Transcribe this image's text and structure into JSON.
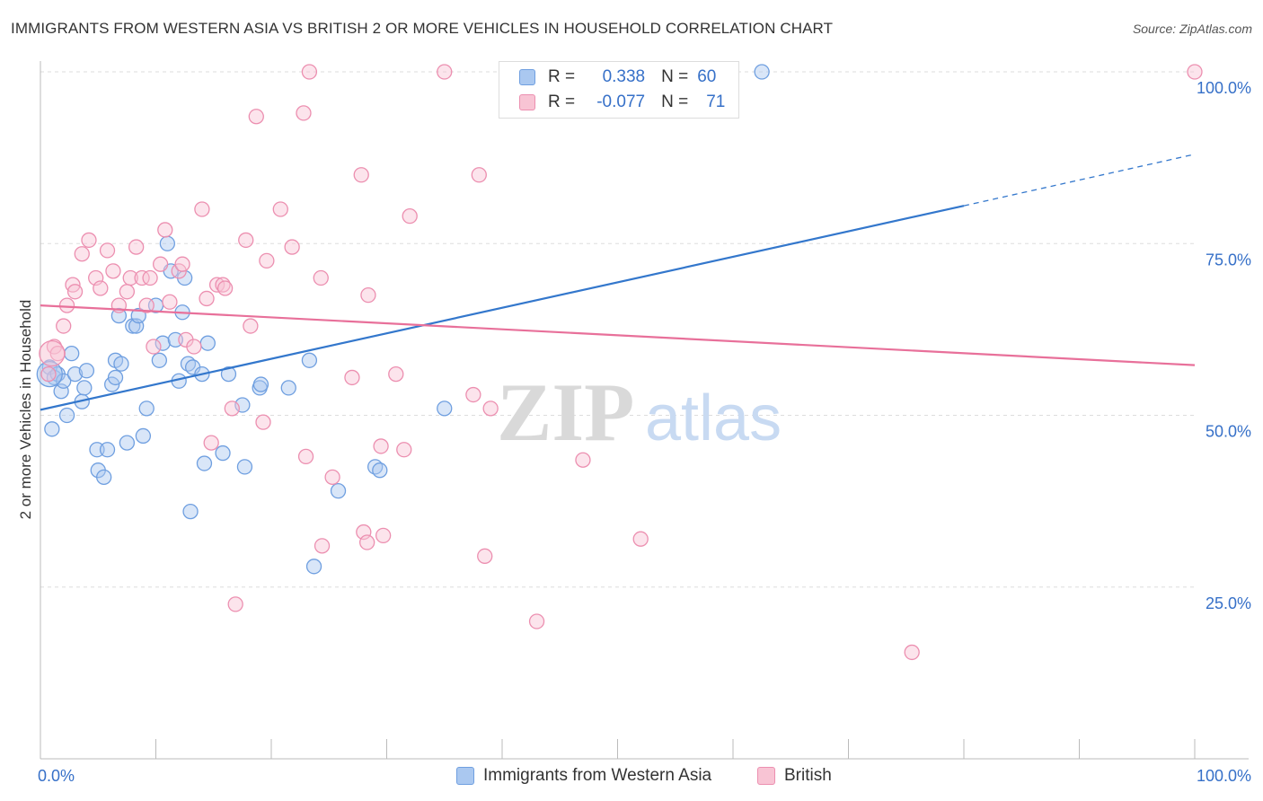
{
  "title": "IMMIGRANTS FROM WESTERN ASIA VS BRITISH 2 OR MORE VEHICLES IN HOUSEHOLD CORRELATION CHART",
  "source": "Source: ZipAtlas.com",
  "watermark": {
    "zip": "ZIP",
    "atlas": "atlas"
  },
  "legend": {
    "r_label": "R =",
    "n_label": "N =",
    "series": [
      {
        "name": "Immigrants from Western Asia",
        "r": "0.338",
        "n": "60",
        "fill": "#aac8f0",
        "stroke": "#6f9fe0"
      },
      {
        "name": "British",
        "r": "-0.077",
        "n": "71",
        "fill": "#f8c4d4",
        "stroke": "#ec8fb0"
      }
    ]
  },
  "chart_data": {
    "type": "scatter",
    "xlabel": "",
    "ylabel": "2 or more Vehicles in Household",
    "xlim": [
      0,
      100
    ],
    "ylim": [
      0,
      100
    ],
    "x_tick_labels": [
      "0.0%",
      "100.0%"
    ],
    "y_tick_labels": [
      "25.0%",
      "50.0%",
      "75.0%",
      "100.0%"
    ],
    "y_tick_values": [
      25,
      50,
      75,
      100
    ],
    "colors": {
      "blue_line": "#3377cc",
      "pink_line": "#e8709a",
      "grid": "#dddddd",
      "tick_text": "#3670c8"
    },
    "series": [
      {
        "name": "Immigrants from Western Asia",
        "color": "#6f9fe0",
        "fill": "#aac8f0",
        "trend": {
          "x0": 0,
          "y0": 50.8,
          "x1": 80,
          "y1": 80.5,
          "dash_to_x": 100,
          "dash_to_y": 88.0
        },
        "points": [
          [
            0.8,
            57
          ],
          [
            1.2,
            55.5
          ],
          [
            1.0,
            48
          ],
          [
            1.5,
            56
          ],
          [
            1.8,
            53.5
          ],
          [
            2.0,
            55
          ],
          [
            2.3,
            50
          ],
          [
            2.7,
            59
          ],
          [
            3.0,
            56
          ],
          [
            3.6,
            52
          ],
          [
            3.8,
            54
          ],
          [
            4.0,
            56.5
          ],
          [
            4.9,
            45
          ],
          [
            5.0,
            42
          ],
          [
            5.5,
            41
          ],
          [
            5.8,
            45
          ],
          [
            6.2,
            54.5
          ],
          [
            6.5,
            58
          ],
          [
            6.5,
            55.5
          ],
          [
            6.8,
            64.5
          ],
          [
            7.0,
            57.5
          ],
          [
            7.5,
            46
          ],
          [
            8.0,
            63
          ],
          [
            8.3,
            63
          ],
          [
            8.5,
            64.5
          ],
          [
            8.9,
            47
          ],
          [
            9.2,
            51
          ],
          [
            10.0,
            66
          ],
          [
            10.3,
            58
          ],
          [
            10.6,
            60.5
          ],
          [
            11.0,
            75
          ],
          [
            11.3,
            71
          ],
          [
            11.7,
            61
          ],
          [
            12.0,
            55
          ],
          [
            12.3,
            65
          ],
          [
            12.5,
            70
          ],
          [
            12.8,
            57.5
          ],
          [
            13.2,
            57
          ],
          [
            13.0,
            36
          ],
          [
            14.0,
            56
          ],
          [
            14.2,
            43
          ],
          [
            14.5,
            60.5
          ],
          [
            15.8,
            44.5
          ],
          [
            16.3,
            56
          ],
          [
            17.5,
            51.5
          ],
          [
            17.7,
            42.5
          ],
          [
            19.0,
            54
          ],
          [
            19.1,
            54.5
          ],
          [
            21.5,
            54
          ],
          [
            23.3,
            58
          ],
          [
            23.7,
            28
          ],
          [
            25.8,
            39
          ],
          [
            29.0,
            42.5
          ],
          [
            29.4,
            42
          ],
          [
            35.0,
            51
          ],
          [
            62.5,
            100
          ]
        ]
      },
      {
        "name": "British",
        "color": "#ec8fb0",
        "fill": "#f8c4d4",
        "trend": {
          "x0": 0,
          "y0": 66,
          "x1": 100,
          "y1": 57.3
        },
        "points": [
          [
            0.7,
            56
          ],
          [
            1.2,
            60
          ],
          [
            1.5,
            59
          ],
          [
            2.0,
            63
          ],
          [
            2.3,
            66
          ],
          [
            2.8,
            69
          ],
          [
            3.0,
            68
          ],
          [
            3.6,
            73.5
          ],
          [
            4.2,
            75.5
          ],
          [
            4.8,
            70
          ],
          [
            5.2,
            68.5
          ],
          [
            5.8,
            74
          ],
          [
            6.3,
            71
          ],
          [
            6.8,
            66
          ],
          [
            7.5,
            68
          ],
          [
            7.8,
            70
          ],
          [
            8.3,
            74.5
          ],
          [
            8.8,
            70
          ],
          [
            9.2,
            66
          ],
          [
            9.5,
            70
          ],
          [
            9.8,
            60
          ],
          [
            10.4,
            72
          ],
          [
            10.8,
            77
          ],
          [
            11.2,
            66.5
          ],
          [
            12.0,
            71
          ],
          [
            12.3,
            72
          ],
          [
            12.6,
            61
          ],
          [
            13.3,
            60
          ],
          [
            14.0,
            80
          ],
          [
            14.4,
            67
          ],
          [
            14.8,
            46
          ],
          [
            15.3,
            69
          ],
          [
            15.8,
            69
          ],
          [
            16.0,
            68.5
          ],
          [
            16.6,
            51
          ],
          [
            16.9,
            22.5
          ],
          [
            17.8,
            75.5
          ],
          [
            18.2,
            63
          ],
          [
            18.7,
            93.5
          ],
          [
            19.3,
            49
          ],
          [
            19.6,
            72.5
          ],
          [
            20.8,
            80
          ],
          [
            21.8,
            74.5
          ],
          [
            22.8,
            94
          ],
          [
            23.0,
            44
          ],
          [
            23.3,
            100
          ],
          [
            24.3,
            70
          ],
          [
            24.4,
            31
          ],
          [
            25.3,
            41
          ],
          [
            27.0,
            55.5
          ],
          [
            27.8,
            85
          ],
          [
            28.0,
            33
          ],
          [
            28.3,
            31.5
          ],
          [
            28.4,
            67.5
          ],
          [
            29.5,
            45.5
          ],
          [
            29.7,
            32.5
          ],
          [
            30.8,
            56
          ],
          [
            31.5,
            45
          ],
          [
            32.0,
            79
          ],
          [
            35.0,
            100
          ],
          [
            37.5,
            53
          ],
          [
            38.0,
            85
          ],
          [
            38.5,
            29.5
          ],
          [
            39.0,
            51
          ],
          [
            43.0,
            20
          ],
          [
            47.0,
            43.5
          ],
          [
            52.0,
            32
          ],
          [
            75.5,
            15.5
          ],
          [
            100,
            100
          ]
        ]
      }
    ]
  }
}
